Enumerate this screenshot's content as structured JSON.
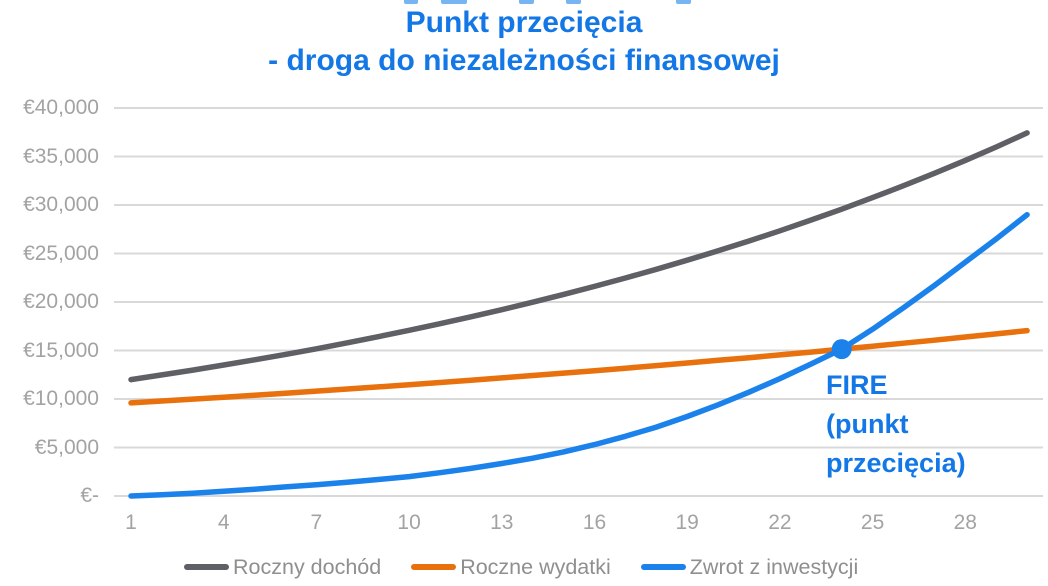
{
  "title": {
    "line1": "Punkt przecięcia",
    "line2": "- droga do niezależności finansowej"
  },
  "annotation": {
    "line1": "FIRE",
    "line2": "(punkt",
    "line3": "przecięcia)"
  },
  "colors": {
    "title_blue": "#1378e6",
    "annotation_blue": "#1378e6",
    "income_gray": "#5f6065",
    "expenses_orange": "#e8710d",
    "roi_blue": "#1b82ec",
    "gridline": "#d9d9d9",
    "axis_label_gray": "#a3a3a3",
    "legend_text_gray": "#8f8f8f"
  },
  "chart_data": {
    "type": "line",
    "title": "Punkt przecięcia - droga do niezależności finansowej",
    "xlabel": "",
    "ylabel": "",
    "x": [
      1,
      2,
      3,
      4,
      5,
      6,
      7,
      8,
      9,
      10,
      11,
      12,
      13,
      14,
      15,
      16,
      17,
      18,
      19,
      20,
      21,
      22,
      23,
      24,
      25,
      26,
      27,
      28,
      29,
      30
    ],
    "x_tick_values": [
      1,
      4,
      7,
      10,
      13,
      16,
      19,
      22,
      25,
      28
    ],
    "x_tick_labels": [
      "1",
      "4",
      "7",
      "10",
      "13",
      "16",
      "19",
      "22",
      "25",
      "28"
    ],
    "y_tick_values": [
      0,
      5000,
      10000,
      15000,
      20000,
      25000,
      30000,
      35000,
      40000
    ],
    "y_tick_labels": [
      "€-",
      "€5,000",
      "€10,000",
      "€15,000",
      "€20,000",
      "€25,000",
      "€30,000",
      "€35,000",
      "€40,000"
    ],
    "ylim": [
      0,
      40000
    ],
    "xlim": [
      1,
      30
    ],
    "grid": true,
    "legend_position": "bottom",
    "series": [
      {
        "name": "Roczny dochód",
        "color": "#5f6065",
        "values": [
          12000,
          12480,
          12980,
          13500,
          14040,
          14600,
          15180,
          15790,
          16420,
          17080,
          17760,
          18470,
          19210,
          19980,
          20780,
          21610,
          22470,
          23370,
          24310,
          25280,
          26290,
          27340,
          28440,
          29570,
          30760,
          31990,
          33270,
          34600,
          35980,
          37430
        ]
      },
      {
        "name": "Roczne wydatki",
        "color": "#e8710d",
        "values": [
          9600,
          9790,
          9990,
          10190,
          10390,
          10600,
          10810,
          11030,
          11250,
          11470,
          11700,
          11940,
          12180,
          12420,
          12670,
          12920,
          13180,
          13440,
          13710,
          13990,
          14260,
          14550,
          14840,
          15140,
          15440,
          15750,
          16060,
          16390,
          16710,
          17050
        ]
      },
      {
        "name": "Zwrot z inwestycji",
        "color": "#1b82ec",
        "values": [
          0,
          130,
          290,
          480,
          700,
          940,
          1150,
          1420,
          1700,
          2000,
          2400,
          2850,
          3350,
          3900,
          4550,
          5300,
          6150,
          7100,
          8200,
          9400,
          10700,
          12100,
          13600,
          15140,
          17200,
          19400,
          21700,
          24100,
          26500,
          29000
        ]
      }
    ],
    "marker": {
      "label": "FIRE (punkt przecięcia)",
      "x": 24,
      "y": 15140,
      "color": "#1b82ec"
    }
  }
}
